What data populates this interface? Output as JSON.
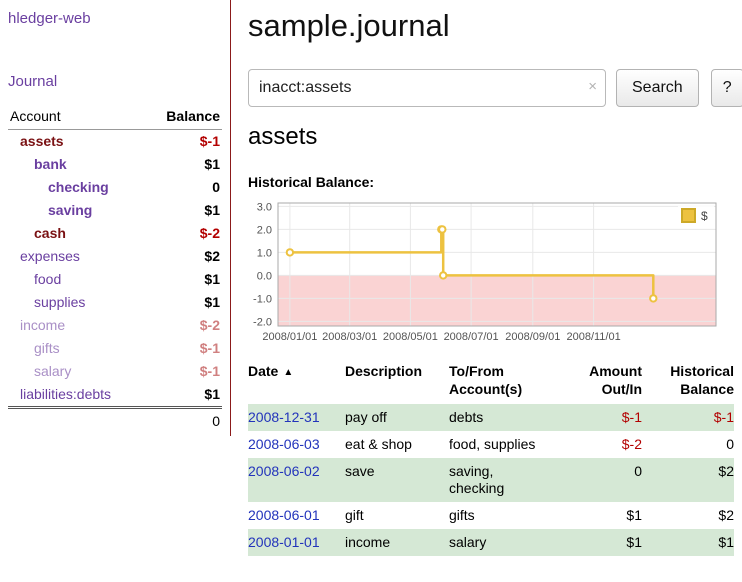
{
  "app": {
    "title": "hledger-web",
    "nav_journal": "Journal"
  },
  "colors": {
    "link_purple": "#6a3fa0",
    "negative_dark": "#7a1113",
    "negative_red": "#b30000",
    "faded_purple": "#a98fc6",
    "faded_red": "#d08080",
    "date_link_blue": "#2233bb",
    "row_green": "#d5e8d5",
    "sidebar_border": "#8b1a1a"
  },
  "sidebar": {
    "header": {
      "account": "Account",
      "balance": "Balance"
    },
    "accounts": [
      {
        "name": "assets",
        "balance": "$-1",
        "level": 1,
        "bold": true,
        "name_style": "negative",
        "balance_style": "negative"
      },
      {
        "name": "bank",
        "balance": "$1",
        "level": 2,
        "bold": true,
        "name_style": "link",
        "balance_style": "normal"
      },
      {
        "name": "checking",
        "balance": "0",
        "level": 3,
        "bold": true,
        "name_style": "link",
        "balance_style": "normal"
      },
      {
        "name": "saving",
        "balance": "$1",
        "level": 3,
        "bold": true,
        "name_style": "link",
        "balance_style": "normal"
      },
      {
        "name": "cash",
        "balance": "$-2",
        "level": 2,
        "bold": true,
        "name_style": "negative",
        "balance_style": "negative"
      },
      {
        "name": "expenses",
        "balance": "$2",
        "level": 1,
        "bold": false,
        "name_style": "link",
        "balance_style": "normal"
      },
      {
        "name": "food",
        "balance": "$1",
        "level": 2,
        "bold": false,
        "name_style": "link",
        "balance_style": "normal"
      },
      {
        "name": "supplies",
        "balance": "$1",
        "level": 2,
        "bold": false,
        "name_style": "link",
        "balance_style": "normal"
      },
      {
        "name": "income",
        "balance": "$-2",
        "level": 1,
        "bold": false,
        "name_style": "link-faded",
        "balance_style": "negative-faded"
      },
      {
        "name": "gifts",
        "balance": "$-1",
        "level": 2,
        "bold": false,
        "name_style": "link-faded",
        "balance_style": "negative-faded"
      },
      {
        "name": "salary",
        "balance": "$-1",
        "level": 2,
        "bold": false,
        "name_style": "link-faded",
        "balance_style": "negative-faded"
      },
      {
        "name": "liabilities:debts",
        "balance": "$1",
        "level": 1,
        "bold": false,
        "name_style": "link",
        "balance_style": "normal"
      }
    ],
    "total": "0"
  },
  "main": {
    "title": "sample.journal",
    "search": {
      "value": "inacct:assets",
      "clear_icon": "×",
      "button": "Search",
      "help_button": "?"
    },
    "account_heading": "assets",
    "chart_label": "Historical Balance:"
  },
  "chart_data": {
    "type": "line",
    "step": true,
    "title": "Historical Balance:",
    "legend_label": "$",
    "legend_position": "top-right",
    "grid": true,
    "x_epoch": "2008-01-01",
    "x_ticks": [
      "2008-01-01",
      "2008-03-01",
      "2008-05-01",
      "2008-07-01",
      "2008-09-01",
      "2008-11-01"
    ],
    "y_ticks": [
      3.0,
      2.0,
      1.0,
      0.0,
      -1.0,
      -2.0
    ],
    "x_domain_days": [
      -12,
      428
    ],
    "y_domain": [
      -2.2,
      3.15
    ],
    "series": [
      {
        "name": "$",
        "points": [
          [
            "2008-01-01",
            1
          ],
          [
            "2008-06-01",
            2
          ],
          [
            "2008-06-02",
            2
          ],
          [
            "2008-06-03",
            0
          ],
          [
            "2008-12-31",
            -1
          ]
        ]
      }
    ],
    "colors": {
      "line": "#edc240",
      "legend_border": "#cda928",
      "below_zero": "#fad3d3"
    }
  },
  "register": {
    "headers": {
      "date": "Date",
      "sort_icon": "▲",
      "description": "Description",
      "accounts_line1": "To/From",
      "accounts_line2": "Account(s)",
      "amount_line1": "Amount",
      "amount_line2": "Out/In",
      "balance_line1": "Historical",
      "balance_line2": "Balance"
    },
    "rows": [
      {
        "date": "2008-12-31",
        "description": "pay off",
        "accounts": "debts",
        "amount": "$-1",
        "balance": "$-1",
        "amount_negative": true,
        "balance_negative": true,
        "shaded": true
      },
      {
        "date": "2008-06-03",
        "description": "eat & shop",
        "accounts": "food, supplies",
        "amount": "$-2",
        "balance": "0",
        "amount_negative": true,
        "balance_negative": false,
        "shaded": false
      },
      {
        "date": "2008-06-02",
        "description": "save",
        "accounts": "saving,\nchecking",
        "amount": "0",
        "balance": "$2",
        "amount_negative": false,
        "balance_negative": false,
        "shaded": true
      },
      {
        "date": "2008-06-01",
        "description": "gift",
        "accounts": "gifts",
        "amount": "$1",
        "balance": "$2",
        "amount_negative": false,
        "balance_negative": false,
        "shaded": false
      },
      {
        "date": "2008-01-01",
        "description": "income",
        "accounts": "salary",
        "amount": "$1",
        "balance": "$1",
        "amount_negative": false,
        "balance_negative": false,
        "shaded": true
      }
    ]
  }
}
